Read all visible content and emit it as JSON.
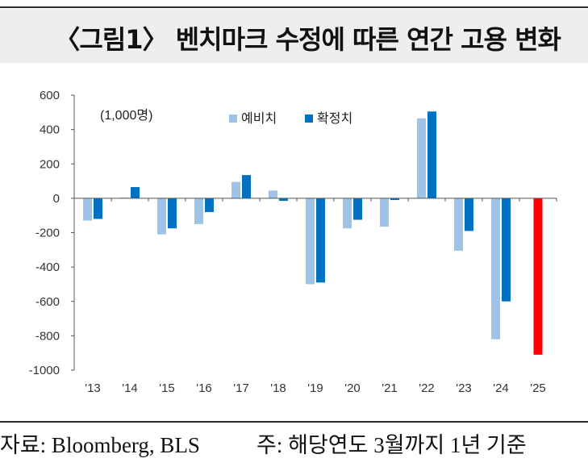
{
  "header": {
    "title": "〈그림1〉 벤치마크 수정에 따른 연간 고용 변화"
  },
  "footer": {
    "source": "자료: Bloomberg, BLS",
    "note": "주: 해당연도 3월까지 1년 기준"
  },
  "chart_data": {
    "type": "bar",
    "unit_label": "(1,000명)",
    "categories": [
      "'13",
      "'14",
      "'15",
      "'16",
      "'17",
      "'18",
      "'19",
      "'20",
      "'21",
      "'22",
      "'23",
      "'24",
      "'25"
    ],
    "series": [
      {
        "name": "예비치",
        "color": "#9dc3e6",
        "values": [
          -130,
          5,
          -210,
          -150,
          95,
          45,
          -500,
          -175,
          -165,
          465,
          -305,
          -820,
          null
        ]
      },
      {
        "name": "확정치",
        "color": "#0070c0",
        "values": [
          -120,
          65,
          -175,
          -80,
          135,
          -15,
          -490,
          -125,
          -10,
          505,
          -190,
          -600,
          null
        ]
      }
    ],
    "highlight": {
      "category": "'25",
      "value": -910,
      "color": "#ff0000"
    },
    "ylim": [
      -1000,
      600
    ],
    "yticks": [
      600,
      400,
      200,
      0,
      -200,
      -400,
      -600,
      -800,
      -1000
    ],
    "legend_position": "top-center",
    "grid": false
  }
}
